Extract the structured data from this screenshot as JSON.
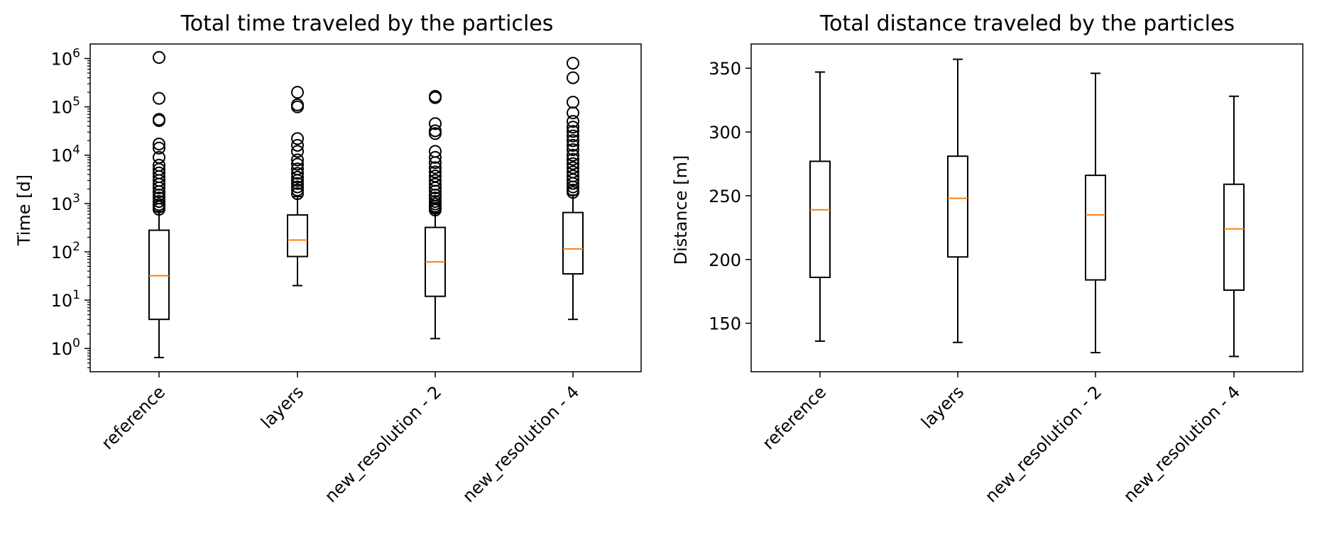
{
  "colors": {
    "box": "#000000",
    "median": "#ff7f0e",
    "background": "#ffffff"
  },
  "chart_data": [
    {
      "type": "box",
      "title": "Total time traveled by the particles",
      "xlabel": "",
      "ylabel": "Time [d]",
      "yscale": "log",
      "ylim": [
        0.33,
        2000000
      ],
      "yticks": [
        1,
        10,
        100,
        1000,
        10000,
        100000,
        1000000
      ],
      "ytick_base": "10",
      "ytick_exponents": [
        "0",
        "1",
        "2",
        "3",
        "4",
        "5",
        "6"
      ],
      "categories": [
        "reference",
        "layers",
        "new_resolution - 2",
        "new_resolution - 4"
      ],
      "boxes": [
        {
          "whisker_low": 0.65,
          "q1": 4,
          "median": 32,
          "q3": 280,
          "whisker_high": 680,
          "outliers": [
            760,
            850,
            950,
            1100,
            1300,
            1500,
            1750,
            2100,
            2500,
            3000,
            3600,
            4300,
            5100,
            6200,
            9000,
            14000,
            17000,
            52000,
            55000,
            150000,
            1050000
          ]
        },
        {
          "whisker_low": 20,
          "q1": 80,
          "median": 175,
          "q3": 580,
          "whisker_high": 1400,
          "outliers": [
            1600,
            1900,
            2200,
            2600,
            3000,
            3500,
            4200,
            5200,
            6500,
            8000,
            12000,
            16000,
            22000,
            100000,
            110000,
            200000
          ]
        },
        {
          "whisker_low": 1.6,
          "q1": 12,
          "median": 62,
          "q3": 320,
          "whisker_high": 650,
          "outliers": [
            730,
            800,
            880,
            980,
            1100,
            1300,
            1500,
            1800,
            2100,
            2500,
            3000,
            3700,
            4500,
            5500,
            7000,
            9000,
            12000,
            28000,
            32000,
            45000,
            155000,
            165000
          ]
        },
        {
          "whisker_low": 4,
          "q1": 35,
          "median": 115,
          "q3": 650,
          "whisker_high": 1500,
          "outliers": [
            1700,
            1900,
            2200,
            2600,
            3100,
            3700,
            4500,
            5500,
            6700,
            8200,
            10000,
            13000,
            16000,
            20000,
            25000,
            31000,
            38000,
            50000,
            75000,
            125000,
            400000,
            800000
          ]
        }
      ]
    },
    {
      "type": "box",
      "title": "Total distance traveled by the particles",
      "xlabel": "",
      "ylabel": "Distance [m]",
      "yscale": "linear",
      "ylim": [
        112,
        369
      ],
      "yticks": [
        150,
        200,
        250,
        300,
        350
      ],
      "categories": [
        "reference",
        "layers",
        "new_resolution - 2",
        "new_resolution - 4"
      ],
      "boxes": [
        {
          "whisker_low": 136,
          "q1": 186,
          "median": 239,
          "q3": 277,
          "whisker_high": 347,
          "outliers": []
        },
        {
          "whisker_low": 135,
          "q1": 202,
          "median": 248,
          "q3": 281,
          "whisker_high": 357,
          "outliers": []
        },
        {
          "whisker_low": 127,
          "q1": 184,
          "median": 235,
          "q3": 266,
          "whisker_high": 346,
          "outliers": []
        },
        {
          "whisker_low": 124,
          "q1": 176,
          "median": 224,
          "q3": 259,
          "whisker_high": 328,
          "outliers": []
        }
      ]
    }
  ]
}
